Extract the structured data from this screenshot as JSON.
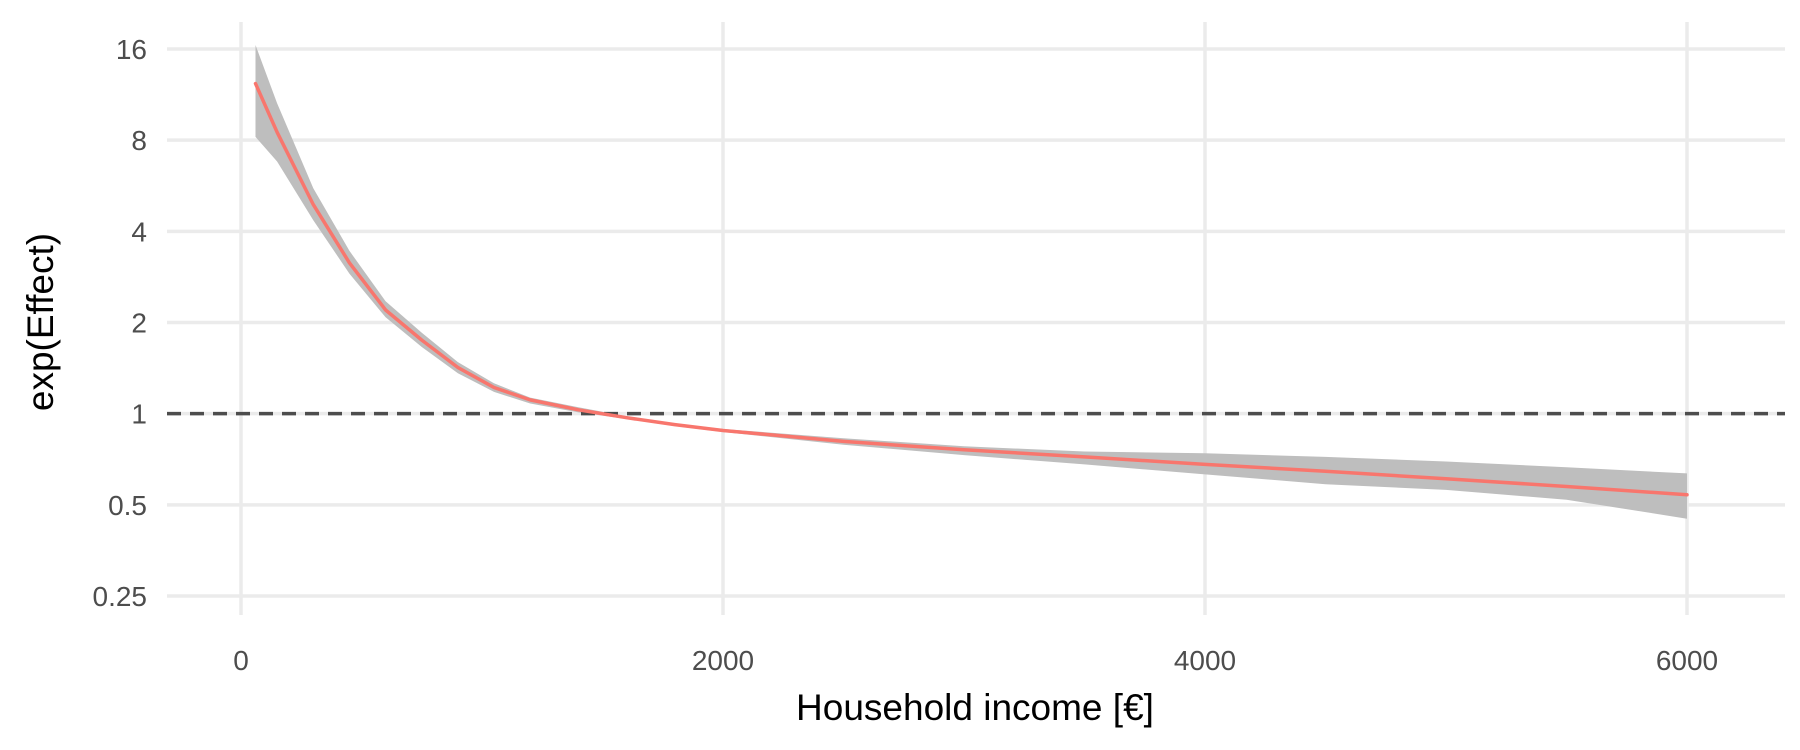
{
  "chart_data": {
    "type": "line",
    "xlabel": "Household income [€]",
    "ylabel": "exp(Effect)",
    "x_scale": "linear",
    "y_scale": "log2",
    "xlim": [
      -300,
      6400
    ],
    "ylim": [
      0.2,
      18
    ],
    "x_ticks": [
      0,
      2000,
      4000,
      6000
    ],
    "x_tick_labels": [
      "0",
      "2000",
      "4000",
      "6000"
    ],
    "y_ticks": [
      0.25,
      0.5,
      1,
      2,
      4,
      8,
      16
    ],
    "y_tick_labels": [
      "0.25",
      "0.5",
      "1",
      "2",
      "4",
      "8",
      "16"
    ],
    "grid": true,
    "reference_line": {
      "y": 1,
      "style": "dashed",
      "color": "#4d4d4d"
    },
    "colors": {
      "line": "#F8766D",
      "band": "#bebebe",
      "grid": "#ebebeb"
    },
    "series": [
      {
        "x": [
          60,
          150,
          300,
          450,
          600,
          750,
          900,
          1050,
          1200,
          1400,
          1600,
          1800,
          2000,
          2500,
          3000,
          3500,
          4000,
          4500,
          5000,
          5500,
          6000
        ],
        "y": [
          12.3,
          8.5,
          4.9,
          3.15,
          2.2,
          1.75,
          1.42,
          1.22,
          1.11,
          1.03,
          0.97,
          0.92,
          0.88,
          0.81,
          0.76,
          0.72,
          0.68,
          0.645,
          0.61,
          0.575,
          0.54
        ],
        "lower": [
          8.2,
          6.8,
          4.35,
          2.9,
          2.08,
          1.66,
          1.36,
          1.18,
          1.08,
          1.01,
          0.96,
          0.91,
          0.87,
          0.79,
          0.73,
          0.68,
          0.63,
          0.585,
          0.56,
          0.52,
          0.45
        ],
        "upper": [
          16.5,
          10.6,
          5.55,
          3.45,
          2.35,
          1.85,
          1.48,
          1.26,
          1.13,
          1.05,
          0.98,
          0.93,
          0.89,
          0.83,
          0.78,
          0.75,
          0.74,
          0.72,
          0.695,
          0.665,
          0.635
        ]
      }
    ]
  }
}
